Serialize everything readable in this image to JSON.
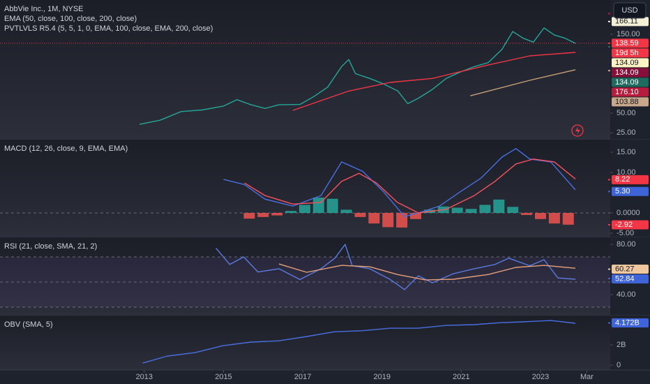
{
  "toolbar": {
    "currency": "USD"
  },
  "time_axis": {
    "xlim": [
      2009.36,
      2024.76
    ],
    "xticks": [
      2013,
      2015,
      2017,
      2019,
      2021,
      2023,
      {
        "value": 2024.17,
        "label": "Mar"
      }
    ]
  },
  "chart_data": [
    {
      "type": "line",
      "legend": [
        "AbbVie Inc., 1M, NYSE",
        "EMA (50, close, 100, close, 200, close)",
        "PVTLVLS R5.4 (5, 5, 1, 0, EMA, 100, close, EMA, 200, close)"
      ],
      "ylim": [
        16.4,
        193.4
      ],
      "yticks": [
        {
          "value": 25,
          "label": "25.00"
        },
        {
          "value": 50,
          "label": "50.00"
        },
        {
          "value": 150,
          "label": "150.00"
        }
      ],
      "series": [
        {
          "color": "#26a69a",
          "x": [
            2012.88,
            2013.4,
            2013.93,
            2014.46,
            2015,
            2015.34,
            2015.7,
            2016.05,
            2016.4,
            2016.93,
            2017.28,
            2017.63,
            2017.98,
            2018.16,
            2018.33,
            2018.69,
            2019.04,
            2019.4,
            2019.65,
            2019.92,
            2020.27,
            2020.62,
            2020.97,
            2021.33,
            2021.68,
            2022.03,
            2022.3,
            2022.56,
            2022.82,
            2023.09,
            2023.35,
            2023.62,
            2023.88
          ],
          "values": [
            35.8,
            41,
            52,
            54,
            59,
            67,
            60.6,
            56,
            60.6,
            61,
            71,
            83,
            109,
            118,
            100,
            94,
            87,
            78,
            62,
            69,
            80,
            94,
            102,
            109,
            114,
            131,
            153.5,
            145,
            140,
            158,
            149,
            145,
            138.5
          ]
        },
        {
          "color": "#f23645",
          "x": [
            2016.75,
            2018.16,
            2019.21,
            2020.27,
            2021.68,
            2022.73,
            2023.88
          ],
          "values": [
            53.5,
            78,
            89,
            94,
            111,
            122.6,
            127
          ]
        },
        {
          "color": "#c8a07a",
          "x": [
            2021.23,
            2022.73,
            2023.88
          ],
          "values": [
            72,
            91.6,
            105
          ]
        }
      ],
      "tags": [
        {
          "value": 166.11,
          "label": "166.11",
          "color": "#f3f0d6"
        },
        {
          "value": 138.59,
          "label": "138.59",
          "color": "#f23645",
          "line": true
        },
        {
          "label": "19d 5h",
          "color": "#f23645"
        },
        {
          "value": 134.09,
          "label": "134.09",
          "color": "#fff3c4"
        },
        {
          "value": 134.09,
          "label": "134.09",
          "color": "#880e3a"
        },
        {
          "value": 134.09,
          "label": "134.09",
          "color": "#1e6b5f"
        },
        {
          "value": 176.1,
          "label": "176.10",
          "color": "#b71c3c"
        },
        {
          "value": 103.88,
          "label": "103.88",
          "color": "#c8a88a"
        }
      ]
    },
    {
      "type": "combo",
      "legend": [
        "MACD (12, 26, close, 9, EMA, EMA)"
      ],
      "ylim": [
        -6.03,
        18.1
      ],
      "yticks": [
        {
          "value": 15,
          "label": "15.00"
        },
        {
          "value": 10,
          "label": "10.00"
        },
        {
          "value": 0,
          "label": "0.0000"
        },
        {
          "value": -5,
          "label": "-5.00"
        }
      ],
      "hlines": [
        0
      ],
      "series": [
        {
          "type": "bar",
          "color": "#26a69a",
          "negative_color": "#ef5350",
          "x": [
            2015.65,
            2016.0,
            2016.35,
            2016.7,
            2017.05,
            2017.4,
            2017.75,
            2018.1,
            2018.45,
            2018.8,
            2019.15,
            2019.5,
            2019.85,
            2020.2,
            2020.55,
            2020.9,
            2021.25,
            2021.6,
            2021.95,
            2022.3,
            2022.65,
            2023.0,
            2023.35,
            2023.7
          ],
          "values": [
            -1.4,
            -1,
            -0.6,
            0.5,
            2,
            3.8,
            3.5,
            0.8,
            -1,
            -2.6,
            -3.5,
            -3.6,
            -1.5,
            0.8,
            1.6,
            1.3,
            1,
            2,
            3.3,
            1.5,
            -0.5,
            -1.5,
            -2.6,
            -2.9
          ]
        },
        {
          "color": "#4a6fe3",
          "x": [
            2015,
            2015.53,
            2016.05,
            2016.75,
            2017.46,
            2017.98,
            2018.51,
            2019.04,
            2019.57,
            2019.92,
            2020.45,
            2020.97,
            2021.5,
            2022.03,
            2022.38,
            2022.73,
            2023.26,
            2023.62,
            2023.88
          ],
          "values": [
            8.3,
            7,
            3.4,
            1.7,
            4.3,
            12.6,
            10.3,
            5.2,
            -0.9,
            0,
            1.7,
            5.2,
            8.6,
            13.8,
            15.9,
            13.3,
            12.6,
            8.6,
            5.7
          ]
        },
        {
          "color": "#f7525f",
          "x": [
            2015.53,
            2016.05,
            2016.75,
            2017.46,
            2017.98,
            2018.42,
            2018.86,
            2019.39,
            2019.92,
            2020.62,
            2021.33,
            2021.85,
            2022.38,
            2022.82,
            2023.35,
            2023.88
          ],
          "values": [
            7.4,
            4.3,
            2.2,
            2.6,
            7.8,
            9.8,
            7.4,
            2.6,
            0,
            0.9,
            4.3,
            7.8,
            12.1,
            13.3,
            12.6,
            8.4
          ]
        }
      ],
      "tags": [
        {
          "value": 8.22,
          "label": "8.22",
          "color": "#f23645"
        },
        {
          "value": 5.3,
          "label": "5.30",
          "color": "#3f63d8"
        },
        {
          "value": -2.92,
          "label": "-2.92",
          "color": "#f23645"
        }
      ]
    },
    {
      "type": "line",
      "legend": [
        "RSI (21, close, SMA, 21, 2)"
      ],
      "ylim": [
        23.3,
        85.6
      ],
      "yticks": [
        {
          "value": 80,
          "label": "80.00"
        },
        {
          "value": 40,
          "label": "40.00"
        }
      ],
      "band": [
        30,
        70
      ],
      "hlines": [
        70,
        50,
        30
      ],
      "series": [
        {
          "color": "#5b7be0",
          "x": [
            2014.81,
            2015.16,
            2015.51,
            2015.87,
            2016.4,
            2016.93,
            2017.46,
            2017.81,
            2018.07,
            2018.25,
            2018.69,
            2019.21,
            2019.57,
            2019.92,
            2020.27,
            2020.8,
            2021.33,
            2021.85,
            2022.2,
            2022.73,
            2023.09,
            2023.44,
            2023.88
          ],
          "values": [
            77,
            64,
            70,
            58,
            60.6,
            52,
            60.6,
            69,
            80,
            63,
            60.6,
            52,
            44,
            55,
            49.4,
            56.7,
            60.6,
            64,
            69,
            63,
            67.8,
            53.3,
            52.2
          ]
        },
        {
          "color": "#e8a07a",
          "x": [
            2016.4,
            2017.1,
            2017.98,
            2018.69,
            2019.39,
            2020.1,
            2020.8,
            2021.68,
            2022.38,
            2023.09,
            2023.88
          ],
          "values": [
            64.4,
            57.8,
            63.3,
            62.2,
            56,
            51.7,
            52.2,
            56,
            61.7,
            63.3,
            61
          ]
        }
      ],
      "tags": [
        {
          "value": 60.27,
          "label": "60.27",
          "color": "#f0c8a0"
        },
        {
          "value": 52.84,
          "label": "52.84",
          "color": "#3f63d8"
        }
      ]
    },
    {
      "type": "line",
      "legend": [
        "OBV (SMA, 5)"
      ],
      "ylim": [
        -0.48,
        4.9
      ],
      "yticks": [
        {
          "value": 2,
          "label": "2B"
        },
        0
      ],
      "series": [
        {
          "color": "#4a6fe3",
          "x": [
            2012.96,
            2013.58,
            2014.28,
            2014.99,
            2015.69,
            2016.39,
            2017.1,
            2017.8,
            2018.5,
            2019.21,
            2019.91,
            2020.62,
            2021.32,
            2022.02,
            2022.55,
            2023.26,
            2023.88
          ],
          "values": [
            0.2,
            0.9,
            1.24,
            1.93,
            2.28,
            2.4,
            2.83,
            3.3,
            3.4,
            3.65,
            3.65,
            3.93,
            4.0,
            4.2,
            4.28,
            4.41,
            4.14
          ]
        }
      ],
      "tags": [
        {
          "value": 4.172,
          "label": "4.172B",
          "color": "#3f63d8"
        }
      ]
    }
  ]
}
